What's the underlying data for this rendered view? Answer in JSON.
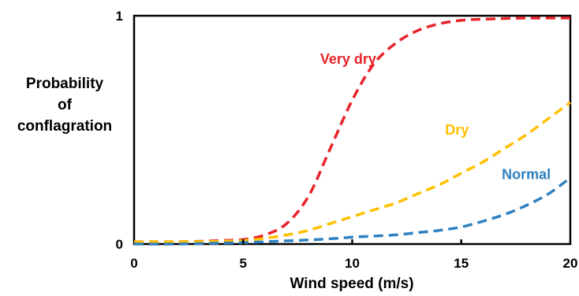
{
  "chart_data": {
    "type": "line",
    "title": "",
    "xlabel": "Wind speed (m/s)",
    "ylabel": [
      "Probability",
      "of",
      "conflagration"
    ],
    "xlim": [
      0,
      20
    ],
    "ylim": [
      0,
      1
    ],
    "x_ticks": [
      0,
      5,
      10,
      15,
      20
    ],
    "y_ticks": [
      0,
      1
    ],
    "grid": false,
    "legend": "none; series labeled inline on the curves",
    "line_style": "dashed",
    "series": [
      {
        "name": "Very dry",
        "color": "#e8232a",
        "x": [
          0,
          2,
          4,
          5,
          6,
          7,
          8,
          9,
          10,
          11,
          12,
          13,
          14,
          15,
          16,
          17,
          18,
          19,
          20
        ],
        "y": [
          0.01,
          0.01,
          0.015,
          0.02,
          0.04,
          0.09,
          0.21,
          0.42,
          0.63,
          0.79,
          0.88,
          0.935,
          0.965,
          0.98,
          0.985,
          0.988,
          0.99,
          0.99,
          0.99
        ]
      },
      {
        "name": "Dry",
        "color": "#ffc000",
        "x": [
          0,
          2,
          4,
          5,
          6,
          7,
          8,
          9,
          10,
          11,
          12,
          13,
          14,
          15,
          16,
          17,
          18,
          19,
          20
        ],
        "y": [
          0.01,
          0.01,
          0.012,
          0.015,
          0.025,
          0.04,
          0.06,
          0.09,
          0.12,
          0.15,
          0.18,
          0.22,
          0.26,
          0.31,
          0.36,
          0.42,
          0.48,
          0.55,
          0.62
        ]
      },
      {
        "name": "Normal",
        "color": "#2e80c0",
        "x": [
          0,
          2,
          4,
          5,
          6,
          7,
          8,
          9,
          10,
          11,
          12,
          13,
          14,
          15,
          16,
          17,
          18,
          19,
          20
        ],
        "y": [
          0.0,
          0.0,
          0.004,
          0.006,
          0.01,
          0.014,
          0.018,
          0.023,
          0.03,
          0.035,
          0.04,
          0.05,
          0.06,
          0.075,
          0.1,
          0.13,
          0.17,
          0.22,
          0.29
        ]
      }
    ],
    "series_labels": [
      "Very dry",
      "Dry",
      "Normal"
    ]
  }
}
